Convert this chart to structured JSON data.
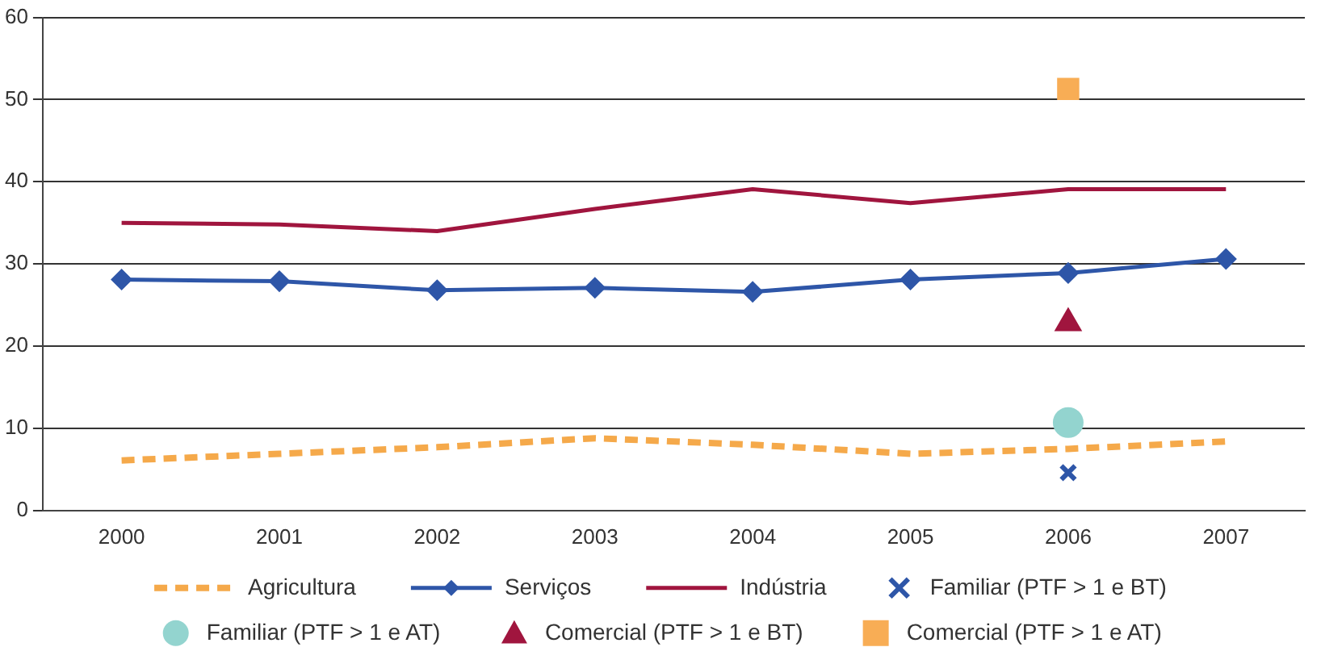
{
  "chart_data": {
    "type": "line",
    "categories": [
      "2000",
      "2001",
      "2002",
      "2003",
      "2004",
      "2005",
      "2006",
      "2007"
    ],
    "ylim": [
      0,
      60
    ],
    "yticks": [
      0,
      10,
      20,
      30,
      40,
      50,
      60
    ],
    "grid": "y",
    "legend": "bottom",
    "series": [
      {
        "name": "Agricultura",
        "color": "#f5a94a",
        "line_style": "dashed",
        "marker": "none",
        "values": [
          6.1,
          6.9,
          7.7,
          8.8,
          8.0,
          6.9,
          7.5,
          8.4
        ]
      },
      {
        "name": "Serviços",
        "color": "#2e56a8",
        "line_style": "solid",
        "marker": "diamond",
        "values": [
          28.1,
          27.9,
          26.8,
          27.1,
          26.6,
          28.1,
          28.9,
          30.6
        ]
      },
      {
        "name": "Indústria",
        "color": "#a0153e",
        "line_style": "solid",
        "marker": "none",
        "values": [
          35.0,
          34.8,
          34.0,
          36.7,
          39.1,
          37.4,
          39.1,
          39.1
        ]
      },
      {
        "name": "Familiar (PTF > 1 e BT)",
        "type": "scatter",
        "color": "#2e56a8",
        "marker": "cross",
        "values": [
          null,
          null,
          null,
          null,
          null,
          null,
          4.6,
          null
        ]
      },
      {
        "name": "Familiar (PTF > 1 e AT)",
        "type": "scatter",
        "color": "#93d4cf",
        "marker": "circle",
        "values": [
          null,
          null,
          null,
          null,
          null,
          null,
          10.7,
          null
        ]
      },
      {
        "name": "Comercial (PTF > 1 e BT)",
        "type": "scatter",
        "color": "#a0153e",
        "marker": "triangle",
        "values": [
          null,
          null,
          null,
          null,
          null,
          null,
          22.8,
          null
        ]
      },
      {
        "name": "Comercial (PTF > 1 e AT)",
        "type": "scatter",
        "color": "#f8ad55",
        "marker": "square",
        "values": [
          null,
          null,
          null,
          null,
          null,
          null,
          51.3,
          null
        ]
      }
    ]
  }
}
